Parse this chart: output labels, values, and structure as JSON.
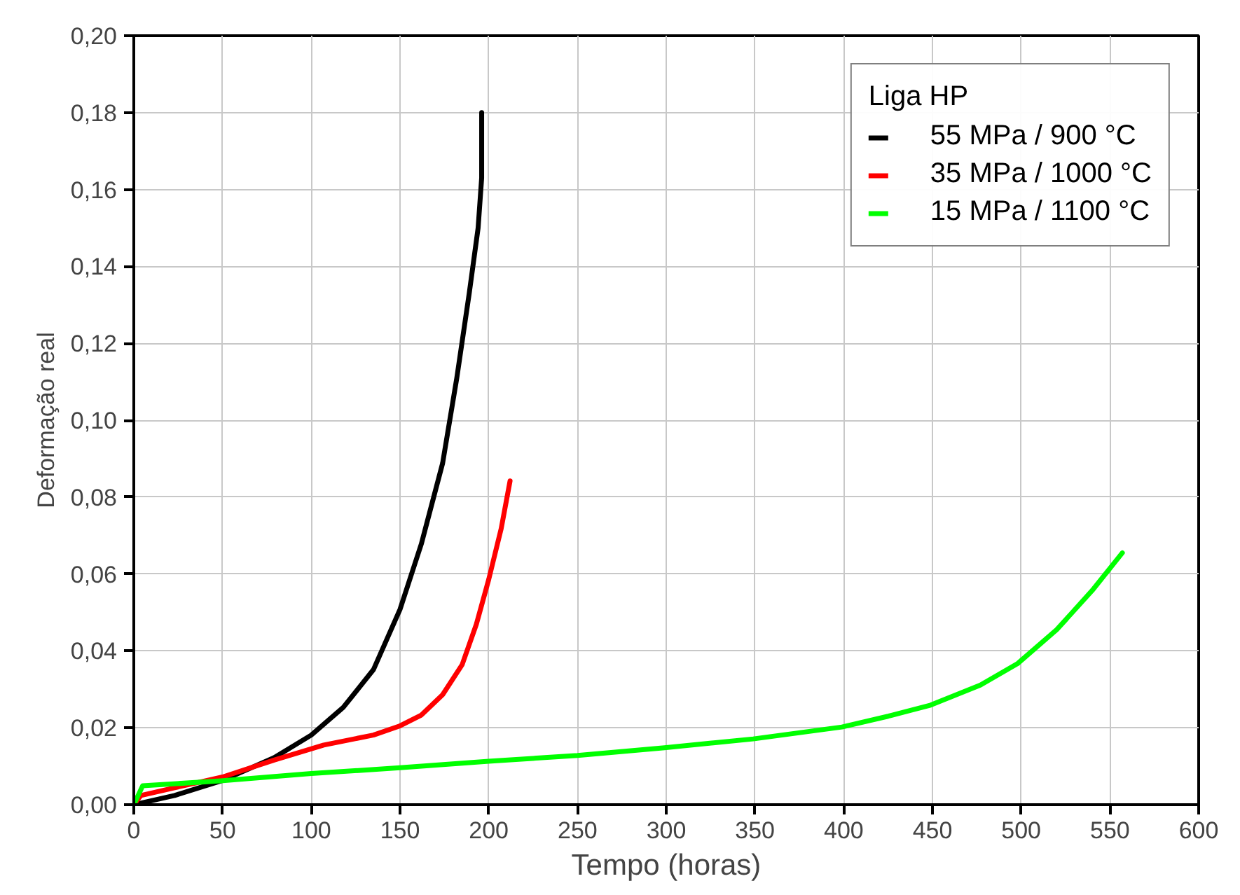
{
  "chart_data": {
    "type": "line",
    "xlabel": "Tempo (horas)",
    "ylabel": "Deformação real",
    "legend_title": "Liga HP",
    "legend": "top right",
    "grid": true,
    "marker": "none",
    "line_style": "solid",
    "xlim": [
      0,
      600
    ],
    "ylim": [
      0,
      0.2
    ],
    "xticks": [
      0,
      50,
      100,
      150,
      200,
      250,
      300,
      350,
      400,
      450,
      500,
      550,
      600
    ],
    "yticks": [
      {
        "value": 0,
        "label": "0,00"
      },
      {
        "value": 0.02,
        "label": "0,02"
      },
      {
        "value": 0.04,
        "label": "0,04"
      },
      {
        "value": 0.06,
        "label": "0,06"
      },
      {
        "value": 0.08,
        "label": "0,08"
      },
      {
        "value": 0.1,
        "label": "0,10"
      },
      {
        "value": 0.12,
        "label": "0,12"
      },
      {
        "value": 0.14,
        "label": "0,14"
      },
      {
        "value": 0.16,
        "label": "0,16"
      },
      {
        "value": 0.18,
        "label": "0,18"
      },
      {
        "value": 0.2,
        "label": "0,20"
      }
    ],
    "series": [
      {
        "name": "55 MPa / 900 °C",
        "color": "#000000",
        "x": [
          0,
          23,
          50,
          79,
          100,
          118,
          135,
          150,
          162,
          174,
          182,
          189,
          194,
          196,
          196
        ],
        "values": [
          0,
          0.0024,
          0.0063,
          0.0122,
          0.0181,
          0.0253,
          0.0351,
          0.0508,
          0.0678,
          0.0888,
          0.111,
          0.133,
          0.15,
          0.163,
          0.18
        ]
      },
      {
        "name": "35 MPa / 1000 °C",
        "color": "#ff0000",
        "x": [
          0,
          4,
          23,
          50,
          79,
          107,
          135,
          150,
          162,
          174,
          185,
          193,
          200,
          207,
          212
        ],
        "values": [
          0,
          0.0024,
          0.0044,
          0.0072,
          0.0116,
          0.0155,
          0.0181,
          0.0205,
          0.0233,
          0.0286,
          0.0364,
          0.0469,
          0.0586,
          0.0718,
          0.0842
        ]
      },
      {
        "name": "15 MPa / 1100 °C",
        "color": "#00ff00",
        "x": [
          0,
          5,
          49,
          100,
          150,
          200,
          250,
          299,
          349,
          399,
          425,
          449,
          477,
          498,
          520,
          540,
          557
        ],
        "values": [
          0,
          0.0049,
          0.0062,
          0.0081,
          0.0096,
          0.0113,
          0.0128,
          0.0148,
          0.0171,
          0.0202,
          0.023,
          0.0259,
          0.0311,
          0.0367,
          0.0455,
          0.0557,
          0.0655
        ]
      }
    ]
  }
}
